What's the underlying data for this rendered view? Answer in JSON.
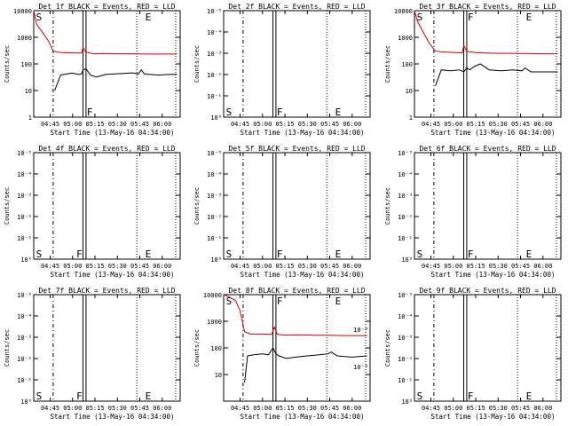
{
  "colors": {
    "background": "#ffffff",
    "axis": "#000000",
    "events": "#000000",
    "lld": "#cc0000"
  },
  "chart_data": [
    {
      "type": "line",
      "title": "Det 1f BLACK = Events, RED = LLD",
      "xlabel": "Start Time (13-May-16 04:34:00)",
      "ylabel": "Counts/sec",
      "x_ticks": [
        "04:45",
        "05:00",
        "05:15",
        "05:30",
        "05:45",
        "06:00"
      ],
      "y_ticks": [
        "1",
        "10",
        "100",
        "1000",
        "10000"
      ],
      "ylim": [
        1,
        10000
      ],
      "ylog": true,
      "has_data": true,
      "markers": [
        {
          "label": "S",
          "x": "04:35",
          "level": "top"
        },
        {
          "label": "F",
          "x": "05:09",
          "level": "low"
        },
        {
          "label": "E",
          "x": "05:48",
          "level": "top"
        }
      ],
      "series": [
        {
          "name": "Events",
          "color": "#000000",
          "x": [
            "04:48",
            "04:52",
            "04:56",
            "05:00",
            "05:04",
            "05:06",
            "05:07",
            "05:09",
            "05:12",
            "05:16",
            "05:22",
            "05:28",
            "05:34",
            "05:40",
            "05:44",
            "05:46",
            "05:48",
            "05:52",
            "05:58",
            "06:04",
            "06:10"
          ],
          "y": [
            10,
            38,
            42,
            45,
            40,
            42,
            60,
            65,
            38,
            32,
            40,
            42,
            44,
            46,
            42,
            60,
            42,
            40,
            38,
            40,
            40
          ]
        },
        {
          "name": "LLD",
          "color": "#cc0000",
          "x": [
            "04:34",
            "04:36",
            "04:40",
            "04:44",
            "04:47",
            "04:52",
            "05:00",
            "05:06",
            "05:07",
            "05:09",
            "05:14",
            "05:20",
            "05:30",
            "05:40",
            "05:50",
            "06:00",
            "06:10"
          ],
          "y": [
            10000,
            3000,
            1500,
            700,
            300,
            270,
            260,
            255,
            400,
            280,
            240,
            245,
            240,
            240,
            235,
            235,
            235
          ]
        }
      ]
    },
    {
      "type": "line",
      "title": "Det 2f BLACK = Events, RED = LLD",
      "xlabel": "Start Time (13-May-16 04:34:00)",
      "ylabel": "Counts/sec",
      "x_ticks": [
        "04:45",
        "05:00",
        "05:15",
        "05:30",
        "05:45",
        "06:00"
      ],
      "y_ticks": [
        "10⁰",
        "10⁻¹",
        "10⁻²",
        "10⁻³",
        "10⁻⁴",
        "10⁻⁵"
      ],
      "ylim": [
        1,
        100000
      ],
      "ylog": true,
      "has_data": false,
      "markers": [
        {
          "label": "S",
          "x": "04:35",
          "level": "low"
        },
        {
          "label": "F",
          "x": "05:09",
          "level": "low"
        },
        {
          "label": "E",
          "x": "05:48",
          "level": "low"
        }
      ],
      "series": []
    },
    {
      "type": "line",
      "title": "Det 3f BLACK = Events, RED = LLD",
      "xlabel": "Start Time (13-May-16 04:34:00)",
      "ylabel": "Counts/sec",
      "x_ticks": [
        "04:45",
        "05:00",
        "05:15",
        "05:30",
        "05:45",
        "06:00"
      ],
      "y_ticks": [
        "1",
        "10",
        "100",
        "1000",
        "10000"
      ],
      "ylim": [
        1,
        10000
      ],
      "ylog": true,
      "has_data": true,
      "markers": [
        {
          "label": "S",
          "x": "04:35",
          "level": "top"
        },
        {
          "label": "F",
          "x": "05:09",
          "level": "top"
        },
        {
          "label": "E",
          "x": "05:48",
          "level": "top"
        }
      ],
      "series": [
        {
          "name": "Events",
          "color": "#000000",
          "x": [
            "04:48",
            "04:52",
            "04:58",
            "05:04",
            "05:07",
            "05:09",
            "05:11",
            "05:14",
            "05:18",
            "05:24",
            "05:32",
            "05:40",
            "05:46",
            "05:48",
            "05:52",
            "06:00",
            "06:10"
          ],
          "y": [
            15,
            60,
            55,
            60,
            50,
            70,
            60,
            80,
            100,
            60,
            55,
            60,
            55,
            70,
            50,
            50,
            50
          ]
        },
        {
          "name": "LLD",
          "color": "#cc0000",
          "x": [
            "04:34",
            "04:36",
            "04:40",
            "04:44",
            "04:48",
            "04:54",
            "05:00",
            "05:06",
            "05:07",
            "05:09",
            "05:14",
            "05:20",
            "05:30",
            "05:40",
            "05:50",
            "06:00",
            "06:10"
          ],
          "y": [
            10000,
            4000,
            1500,
            600,
            300,
            280,
            270,
            260,
            500,
            300,
            270,
            260,
            250,
            250,
            245,
            240,
            240
          ]
        }
      ]
    },
    {
      "type": "line",
      "title": "Det 4f BLACK = Events, RED = LLD",
      "xlabel": "Start Time (13-May-16 04:34:00)",
      "ylabel": "Counts/sec",
      "x_ticks": [
        "04:45",
        "05:00",
        "05:15",
        "05:30",
        "05:45",
        "06:00"
      ],
      "y_ticks": [
        "10⁰",
        "10⁻¹",
        "10⁻²",
        "10⁻³",
        "10⁻⁴",
        "10⁻⁵"
      ],
      "ylim": [
        1,
        100000
      ],
      "ylog": true,
      "has_data": false,
      "markers": [
        {
          "label": "S",
          "x": "04:35",
          "level": "low"
        },
        {
          "label": "F",
          "x": "05:02",
          "level": "low"
        },
        {
          "label": "E",
          "x": "05:48",
          "level": "low"
        }
      ],
      "series": []
    },
    {
      "type": "line",
      "title": "Det 5f BLACK = Events, RED = LLD",
      "xlabel": "Start Time (13-May-16 04:34:00)",
      "ylabel": "Counts/sec",
      "x_ticks": [
        "04:45",
        "05:00",
        "05:15",
        "05:30",
        "05:45",
        "06:00"
      ],
      "y_ticks": [
        "10⁰",
        "10⁻¹",
        "10⁻²",
        "10⁻³",
        "10⁻⁴",
        "10⁻⁵"
      ],
      "ylim": [
        1,
        100000
      ],
      "ylog": true,
      "has_data": false,
      "markers": [
        {
          "label": "S",
          "x": "04:35",
          "level": "low"
        },
        {
          "label": "F",
          "x": "05:09",
          "level": "low"
        },
        {
          "label": "E",
          "x": "05:48",
          "level": "low"
        }
      ],
      "series": []
    },
    {
      "type": "line",
      "title": "Det 6f BLACK = Events, RED = LLD",
      "xlabel": "Start Time (13-May-16 04:34:00)",
      "ylabel": "Counts/sec",
      "x_ticks": [
        "04:45",
        "05:00",
        "05:15",
        "05:30",
        "05:45",
        "06:00"
      ],
      "y_ticks": [
        "10⁰",
        "10⁻¹",
        "10⁻²",
        "10⁻³",
        "10⁻⁴",
        "10⁻⁵"
      ],
      "ylim": [
        1,
        100000
      ],
      "ylog": true,
      "has_data": false,
      "markers": [
        {
          "label": "S",
          "x": "04:35",
          "level": "low"
        },
        {
          "label": "F",
          "x": "05:09",
          "level": "low"
        },
        {
          "label": "E",
          "x": "05:48",
          "level": "low"
        }
      ],
      "series": []
    },
    {
      "type": "line",
      "title": "Det 7f BLACK = Events, RED = LLD",
      "xlabel": "Start Time (13-May-16 04:34:00)",
      "ylabel": "Counts/sec",
      "x_ticks": [
        "04:45",
        "05:00",
        "05:15",
        "05:30",
        "05:45",
        "06:00"
      ],
      "y_ticks": [
        "10⁰",
        "10⁻¹",
        "10⁻²",
        "10⁻³",
        "10⁻⁴",
        "10⁻⁵"
      ],
      "ylim": [
        1,
        100000
      ],
      "ylog": true,
      "has_data": false,
      "markers": [
        {
          "label": "S",
          "x": "04:35",
          "level": "low"
        },
        {
          "label": "F",
          "x": "05:02",
          "level": "low"
        },
        {
          "label": "E",
          "x": "05:48",
          "level": "low"
        }
      ],
      "series": []
    },
    {
      "type": "line",
      "title": "Det 8f BLACK = Events, RED = LLD",
      "xlabel": "Start Time (13-May-16 04:34:00)",
      "ylabel": "Counts/sec",
      "x_ticks": [
        "04:45",
        "05:00",
        "05:15",
        "05:30",
        "05:45",
        "06:00"
      ],
      "y_ticks": [
        "10",
        "100",
        "1000",
        "10000"
      ],
      "y_ticks_right": [
        "10⁻⁴",
        "10⁻⁵"
      ],
      "ylim": [
        1,
        10000
      ],
      "ylog": true,
      "has_data": true,
      "markers": [
        {
          "label": "S",
          "x": "04:35",
          "level": "top"
        },
        {
          "label": "F",
          "x": "05:09",
          "level": "top"
        },
        {
          "label": "E",
          "x": "05:48",
          "level": "top"
        }
      ],
      "series": [
        {
          "name": "Events",
          "color": "#000000",
          "x": [
            "04:48",
            "04:50",
            "04:54",
            "05:00",
            "05:04",
            "05:07",
            "05:09",
            "05:11",
            "05:16",
            "05:22",
            "05:30",
            "05:38",
            "05:44",
            "05:46",
            "05:50",
            "06:00",
            "06:10"
          ],
          "y": [
            5,
            50,
            55,
            60,
            55,
            100,
            60,
            50,
            40,
            45,
            50,
            55,
            60,
            70,
            50,
            45,
            50
          ]
        },
        {
          "name": "LLD",
          "color": "#cc0000",
          "x": [
            "04:34",
            "04:38",
            "04:42",
            "04:45",
            "04:48",
            "04:52",
            "05:00",
            "05:06",
            "05:08",
            "05:10",
            "05:16",
            "05:24",
            "05:34",
            "05:44",
            "05:54",
            "06:04",
            "06:10"
          ],
          "y": [
            10000,
            8000,
            6000,
            2500,
            400,
            330,
            330,
            320,
            600,
            320,
            300,
            310,
            300,
            300,
            290,
            290,
            290
          ]
        }
      ]
    },
    {
      "type": "line",
      "title": "Det 9f BLACK = Events, RED = LLD",
      "xlabel": "Start Time (13-May-16 04:34:00)",
      "ylabel": "Counts/sec",
      "x_ticks": [
        "04:45",
        "05:00",
        "05:15",
        "05:30",
        "05:45",
        "06:00"
      ],
      "y_ticks": [
        "10⁰",
        "10⁻¹",
        "10⁻²",
        "10⁻³",
        "10⁻⁴",
        "10⁻⁵"
      ],
      "ylim": [
        1,
        100000
      ],
      "ylog": true,
      "has_data": false,
      "markers": [
        {
          "label": "S",
          "x": "04:35",
          "level": "low"
        },
        {
          "label": "F",
          "x": "05:09",
          "level": "low"
        },
        {
          "label": "E",
          "x": "05:48",
          "level": "low"
        }
      ],
      "series": []
    }
  ]
}
